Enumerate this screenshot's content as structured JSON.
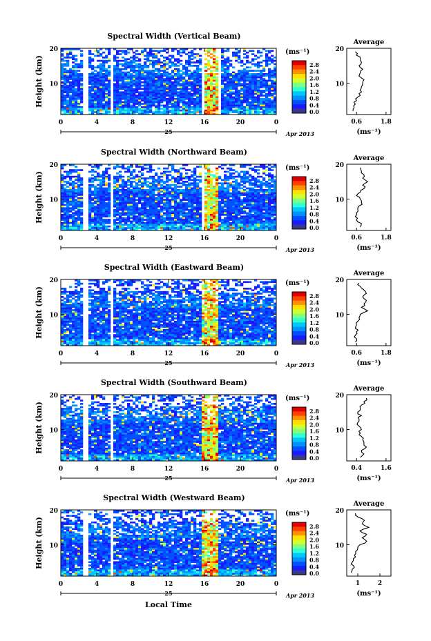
{
  "figure": {
    "xlabel": "Local Time",
    "date_label": "Apr 2013",
    "day_label": "25",
    "ylabel": "Height (km)",
    "unit_label": "(ms⁻¹)",
    "avg_title": "Average",
    "avg_xunit": "(ms⁻¹)"
  },
  "colorbar": {
    "ticks": [
      "2.8",
      "2.4",
      "2.0",
      "1.6",
      "1.2",
      "0.8",
      "0.4",
      "0.0"
    ],
    "colors": [
      "#3a3a8c",
      "#1a1aff",
      "#0050ff",
      "#0090ff",
      "#00c8ff",
      "#30ffd0",
      "#80ff80",
      "#d0ff30",
      "#ffe000",
      "#ff9000",
      "#ff4000",
      "#e00000"
    ]
  },
  "chart_data": [
    {
      "type": "heatmap",
      "title": "Spectral Width (Vertical Beam)",
      "x_ticks": [
        "0",
        "4",
        "8",
        "12",
        "16",
        "20",
        "0"
      ],
      "xlim": [
        0,
        24
      ],
      "y_ticks": [
        "20",
        "10"
      ],
      "ylim": [
        1,
        20
      ],
      "value_range": [
        0.0,
        2.8
      ],
      "data_gaps_hours": [
        [
          2.5,
          3.0
        ],
        [
          5.6,
          5.8
        ],
        [
          15.6,
          15.9
        ],
        [
          17.6,
          17.8
        ]
      ],
      "average_profile": {
        "x_ticks": [
          "0.6",
          "1.8"
        ],
        "xlim": [
          0.2,
          2.0
        ],
        "y_ticks": [
          "20",
          "10"
        ],
        "points": [
          [
            0.45,
            2
          ],
          [
            0.5,
            3
          ],
          [
            0.55,
            4
          ],
          [
            0.6,
            5
          ],
          [
            0.65,
            6
          ],
          [
            0.7,
            7
          ],
          [
            0.75,
            8
          ],
          [
            0.8,
            9
          ],
          [
            0.85,
            10
          ],
          [
            0.9,
            11
          ],
          [
            0.7,
            12
          ],
          [
            0.75,
            13
          ],
          [
            0.85,
            14
          ],
          [
            0.7,
            15
          ],
          [
            0.8,
            16
          ],
          [
            0.75,
            17
          ],
          [
            0.6,
            18
          ],
          [
            0.55,
            19
          ]
        ]
      }
    },
    {
      "type": "heatmap",
      "title": "Spectral Width (Northward Beam)",
      "x_ticks": [
        "0",
        "4",
        "8",
        "12",
        "16",
        "20",
        "0"
      ],
      "xlim": [
        0,
        24
      ],
      "y_ticks": [
        "20",
        "10"
      ],
      "ylim": [
        1,
        20
      ],
      "value_range": [
        0.0,
        2.8
      ],
      "data_gaps_hours": [
        [
          2.6,
          3.0
        ],
        [
          5.6,
          5.8
        ],
        [
          15.8,
          16.0
        ]
      ],
      "average_profile": {
        "x_ticks": [
          "0.6",
          "1.8"
        ],
        "xlim": [
          0.2,
          2.0
        ],
        "y_ticks": [
          "20",
          "10"
        ],
        "points": [
          [
            0.75,
            2
          ],
          [
            0.8,
            3
          ],
          [
            0.6,
            4
          ],
          [
            0.55,
            5
          ],
          [
            0.6,
            6
          ],
          [
            0.65,
            7
          ],
          [
            0.7,
            8
          ],
          [
            0.8,
            9
          ],
          [
            0.75,
            10
          ],
          [
            0.6,
            11
          ],
          [
            0.75,
            12
          ],
          [
            0.9,
            13
          ],
          [
            0.85,
            14
          ],
          [
            1.05,
            15
          ],
          [
            0.85,
            16
          ],
          [
            0.9,
            17
          ],
          [
            0.8,
            18
          ],
          [
            0.75,
            19
          ]
        ]
      }
    },
    {
      "type": "heatmap",
      "title": "Spectral Width (Eastward Beam)",
      "x_ticks": [
        "0",
        "4",
        "8",
        "12",
        "16",
        "20",
        "0"
      ],
      "xlim": [
        0,
        24
      ],
      "y_ticks": [
        "20",
        "10"
      ],
      "ylim": [
        1,
        20
      ],
      "value_range": [
        0.0,
        2.8
      ],
      "data_gaps_hours": [
        [
          2.6,
          3.0
        ],
        [
          5.5,
          5.7
        ]
      ],
      "average_profile": {
        "x_ticks": [
          "0.6",
          "1.8"
        ],
        "xlim": [
          0.2,
          2.0
        ],
        "y_ticks": [
          "20",
          "10"
        ],
        "points": [
          [
            0.55,
            2
          ],
          [
            0.6,
            3
          ],
          [
            0.55,
            4
          ],
          [
            0.6,
            5
          ],
          [
            0.55,
            6
          ],
          [
            0.6,
            7
          ],
          [
            0.65,
            8
          ],
          [
            0.7,
            9
          ],
          [
            0.75,
            10
          ],
          [
            1.05,
            11
          ],
          [
            0.8,
            12
          ],
          [
            0.9,
            13
          ],
          [
            1.0,
            14
          ],
          [
            0.85,
            15
          ],
          [
            1.0,
            16
          ],
          [
            0.9,
            17
          ],
          [
            0.75,
            18
          ],
          [
            0.7,
            19
          ]
        ]
      }
    },
    {
      "type": "heatmap",
      "title": "Spectral Width (Southward Beam)",
      "x_ticks": [
        "0",
        "4",
        "8",
        "12",
        "16",
        "20",
        "0"
      ],
      "xlim": [
        0,
        24
      ],
      "y_ticks": [
        "20",
        "10"
      ],
      "ylim": [
        1,
        20
      ],
      "value_range": [
        0.0,
        2.8
      ],
      "data_gaps_hours": [
        [
          2.6,
          3.0
        ],
        [
          5.5,
          5.7
        ]
      ],
      "average_profile": {
        "x_ticks": [
          "0.4",
          "1.6"
        ],
        "xlim": [
          0.0,
          1.8
        ],
        "y_ticks": [
          "20",
          "10"
        ],
        "points": [
          [
            0.55,
            2
          ],
          [
            0.7,
            3
          ],
          [
            0.6,
            4
          ],
          [
            0.8,
            5
          ],
          [
            0.7,
            6
          ],
          [
            0.65,
            7
          ],
          [
            0.6,
            8
          ],
          [
            0.55,
            9
          ],
          [
            0.6,
            10
          ],
          [
            0.5,
            11
          ],
          [
            0.45,
            12
          ],
          [
            0.5,
            13
          ],
          [
            0.6,
            14
          ],
          [
            0.45,
            15
          ],
          [
            0.55,
            16
          ],
          [
            0.6,
            17
          ],
          [
            0.7,
            18
          ],
          [
            0.8,
            19
          ]
        ]
      }
    },
    {
      "type": "heatmap",
      "title": "Spectral Width (Westward Beam)",
      "x_ticks": [
        "0",
        "4",
        "8",
        "12",
        "16",
        "20",
        "0"
      ],
      "xlim": [
        0,
        24
      ],
      "y_ticks": [
        "20",
        "10"
      ],
      "ylim": [
        1,
        20
      ],
      "value_range": [
        0.0,
        2.8
      ],
      "data_gaps_hours": [
        [
          2.6,
          3.0
        ],
        [
          5.5,
          5.7
        ]
      ],
      "average_profile": {
        "x_ticks": [
          "1",
          "2"
        ],
        "xlim": [
          0.5,
          2.5
        ],
        "y_ticks": [
          "20",
          "10"
        ],
        "points": [
          [
            0.7,
            2
          ],
          [
            0.75,
            3
          ],
          [
            0.8,
            4
          ],
          [
            0.75,
            5
          ],
          [
            0.8,
            6
          ],
          [
            0.85,
            7
          ],
          [
            0.9,
            8
          ],
          [
            1.0,
            9
          ],
          [
            1.1,
            10
          ],
          [
            1.4,
            11
          ],
          [
            1.2,
            12
          ],
          [
            1.4,
            13
          ],
          [
            1.1,
            14
          ],
          [
            1.5,
            15
          ],
          [
            1.2,
            16
          ],
          [
            1.3,
            17
          ],
          [
            1.0,
            18
          ],
          [
            0.9,
            19
          ]
        ]
      }
    }
  ]
}
